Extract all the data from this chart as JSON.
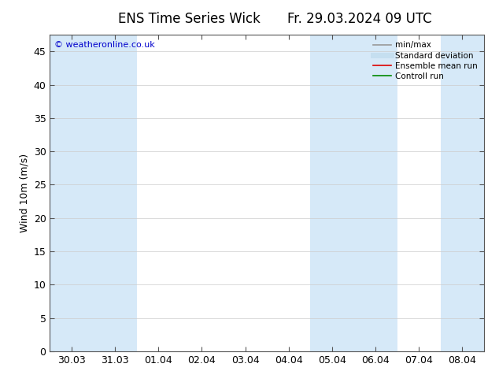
{
  "title_left": "ENS Time Series Wick",
  "title_right": "Fr. 29.03.2024 09 UTC",
  "ylabel": "Wind 10m (m/s)",
  "ylim": [
    0,
    47.5
  ],
  "yticks": [
    0,
    5,
    10,
    15,
    20,
    25,
    30,
    35,
    40,
    45
  ],
  "xtick_labels": [
    "30.03",
    "31.03",
    "01.04",
    "02.04",
    "03.04",
    "04.04",
    "05.04",
    "06.04",
    "07.04",
    "08.04"
  ],
  "band_color": "#d6e9f8",
  "background_color": "#ffffff",
  "copyright_text": "© weatheronline.co.uk",
  "copyright_color": "#0000cc",
  "legend_entries": [
    {
      "label": "min/max",
      "color": "#999999",
      "lw": 1.2,
      "ls": "-"
    },
    {
      "label": "Standard deviation",
      "color": "#c5dff0",
      "lw": 5,
      "ls": "-"
    },
    {
      "label": "Ensemble mean run",
      "color": "#dd0000",
      "lw": 1.2,
      "ls": "-"
    },
    {
      "label": "Controll run",
      "color": "#008800",
      "lw": 1.2,
      "ls": "-"
    }
  ],
  "spine_color": "#555555",
  "font_size": 9,
  "title_font_size": 12
}
